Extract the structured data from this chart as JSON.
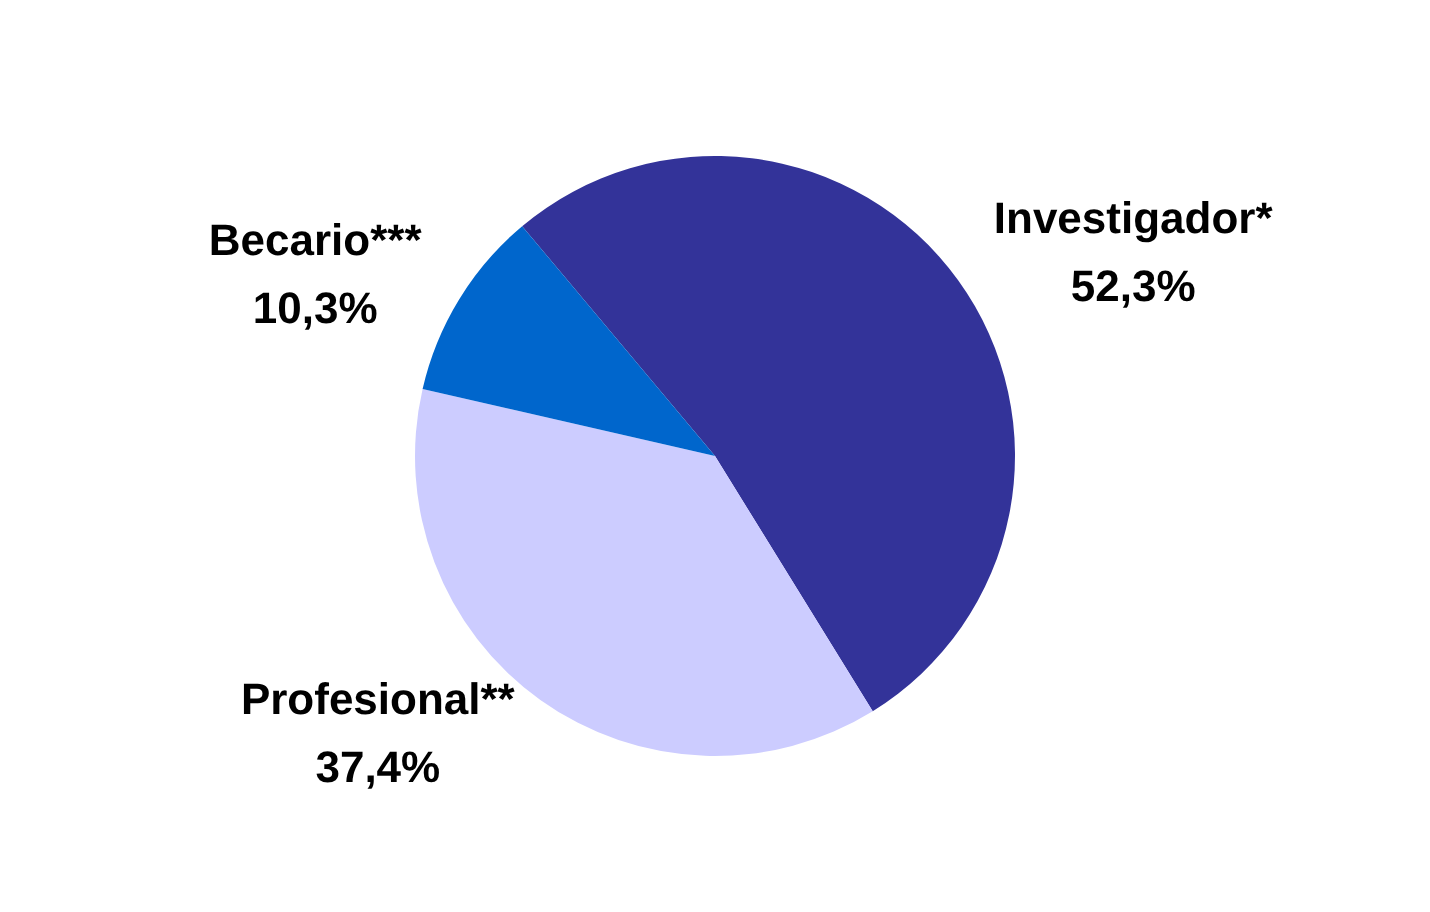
{
  "chart_data": {
    "type": "pie",
    "categories": [
      "Investigador*",
      "Profesional**",
      "Becario***"
    ],
    "values": [
      52.3,
      37.4,
      10.3
    ],
    "colors": [
      "#333399",
      "#ccccff",
      "#0066cc"
    ],
    "value_labels": [
      "52,3%",
      "37,4%",
      "10,3%"
    ],
    "legend": false
  }
}
